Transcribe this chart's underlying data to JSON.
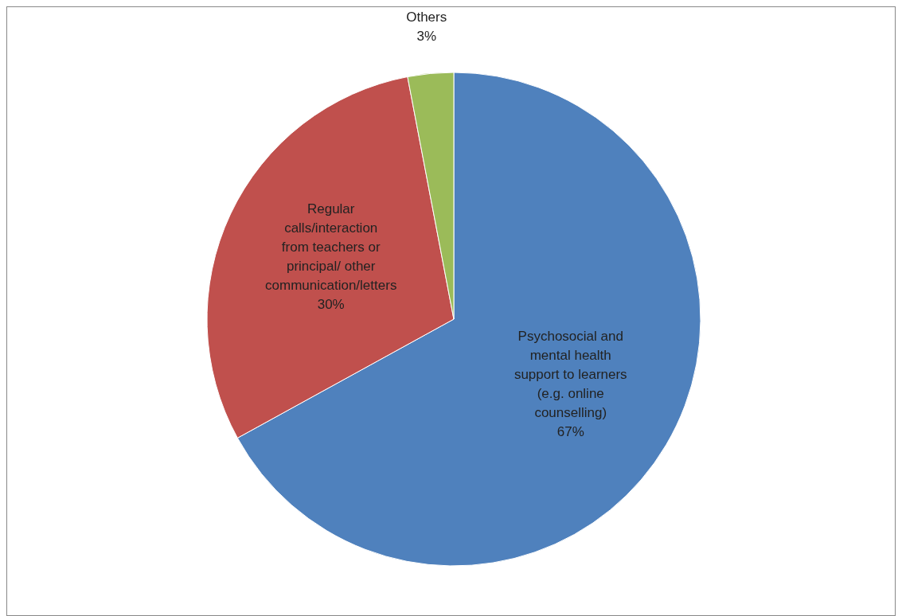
{
  "chart_data": {
    "type": "pie",
    "categories": [
      "Psychosocial and mental health support to learners (e.g. online counselling)",
      "Regular calls/interaction from teachers or principal/ other communication/letters",
      "Others"
    ],
    "values": [
      67,
      30,
      3
    ],
    "colors": [
      "#4f81bd",
      "#c0504d",
      "#9bbb59"
    ],
    "value_labels": [
      "67%",
      "30%",
      "3%"
    ]
  }
}
